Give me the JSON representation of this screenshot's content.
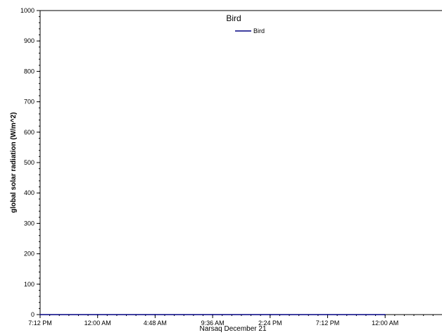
{
  "chart_data": {
    "type": "line",
    "title": "Bird",
    "xlabel": "Narsaq  December  21",
    "ylabel": "global solar radiation (W/m^2)",
    "ylim": [
      0,
      1000
    ],
    "y_ticks": [
      "0",
      "100",
      "200",
      "300",
      "400",
      "500",
      "600",
      "700",
      "800",
      "900",
      "1000"
    ],
    "x_ticks": [
      "7:12 PM",
      "12:00 AM",
      "4:48 AM",
      "9:36 AM",
      "2:24 PM",
      "7:12 PM",
      "12:00 AM"
    ],
    "grid": false,
    "legend_position": "top-center",
    "series": [
      {
        "name": "Bird",
        "color": "#000080",
        "x": [
          "7:12 PM",
          "12:00 AM",
          "4:48 AM",
          "9:36 AM",
          "2:24 PM",
          "7:12 PM",
          "12:00 AM"
        ],
        "values": [
          0,
          0,
          0,
          0,
          0,
          0,
          0
        ]
      }
    ]
  }
}
